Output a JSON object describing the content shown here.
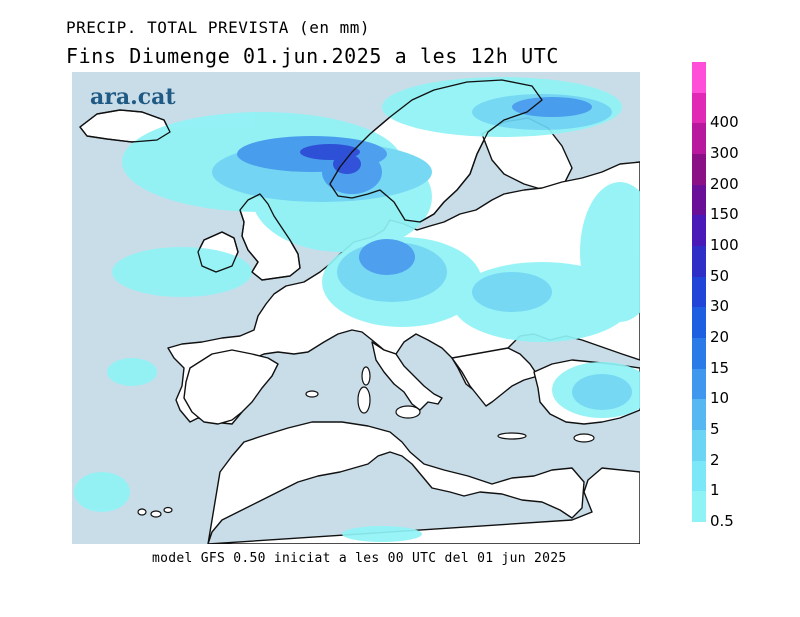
{
  "header": {
    "title": "PRECIP. TOTAL PREVISTA (en mm)",
    "subtitle": "Fins Diumenge 01.jun.2025 a les 12h UTC"
  },
  "logo": {
    "text": "ara.cat"
  },
  "footer": {
    "text": "model GFS 0.50 iniciat a les 00 UTC del 01 jun 2025"
  },
  "legend": {
    "levels": [
      {
        "label": "0.5",
        "color": "#8ff3f6"
      },
      {
        "label": "1",
        "color": "#7ce7f6"
      },
      {
        "label": "2",
        "color": "#6cd5f4"
      },
      {
        "label": "5",
        "color": "#57b7f0"
      },
      {
        "label": "10",
        "color": "#3f98ee"
      },
      {
        "label": "15",
        "color": "#2a7ae8"
      },
      {
        "label": "20",
        "color": "#1d5fe0"
      },
      {
        "label": "30",
        "color": "#2145d6"
      },
      {
        "label": "50",
        "color": "#2f2fc8"
      },
      {
        "label": "100",
        "color": "#4a1ab8"
      },
      {
        "label": "150",
        "color": "#6a0f98"
      },
      {
        "label": "200",
        "color": "#8b1086"
      },
      {
        "label": "300",
        "color": "#b8189e"
      },
      {
        "label": "400",
        "color": "#e02ab6"
      },
      {
        "label": "",
        "color": "#ff4fd8"
      }
    ]
  },
  "map_colors": {
    "sea": "#c9dde9",
    "land": "#ffffff",
    "coast": "#111111"
  }
}
